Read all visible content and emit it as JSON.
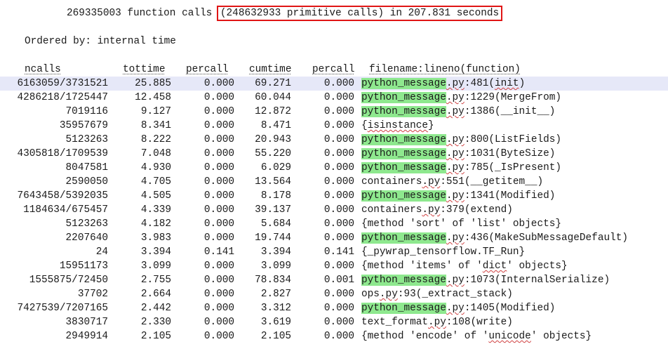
{
  "summary": {
    "calls_text": "269335003 function calls",
    "primitive_text": "(248632933 primitive calls) in 207.831 seconds"
  },
  "ordered_by": "Ordered by: internal time",
  "headers": {
    "ncalls": "ncalls",
    "tottime": "tottime",
    "percall1": "percall",
    "cumtime": "cumtime",
    "percall2": "percall",
    "fn": "filename:lineno(function)"
  },
  "rows": [
    {
      "ncalls": "6163059/3731521",
      "tottime": "25.885",
      "percall1": "0.000",
      "cumtime": "69.271",
      "percall2": "0.000",
      "file": "python_message",
      "ext": ".py",
      "rest": ":481(init)"
    },
    {
      "ncalls": "4286218/1725447",
      "tottime": "12.458",
      "percall1": "0.000",
      "cumtime": "60.044",
      "percall2": "0.000",
      "file": "python_message",
      "ext": ".py",
      "rest": ":1229(MergeFrom)"
    },
    {
      "ncalls": "7019116",
      "tottime": "9.127",
      "percall1": "0.000",
      "cumtime": "12.872",
      "percall2": "0.000",
      "file": "python_message",
      "ext": ".py",
      "rest": ":1386(__init__)"
    },
    {
      "ncalls": "35957679",
      "tottime": "8.341",
      "percall1": "0.000",
      "cumtime": "8.471",
      "percall2": "0.000",
      "file": "",
      "ext": "",
      "rest": "{isinstance}"
    },
    {
      "ncalls": "5123263",
      "tottime": "8.222",
      "percall1": "0.000",
      "cumtime": "20.943",
      "percall2": "0.000",
      "file": "python_message",
      "ext": ".py",
      "rest": ":800(ListFields)"
    },
    {
      "ncalls": "4305818/1709539",
      "tottime": "7.048",
      "percall1": "0.000",
      "cumtime": "55.220",
      "percall2": "0.000",
      "file": "python_message",
      "ext": ".py",
      "rest": ":1031(ByteSize)"
    },
    {
      "ncalls": "8047581",
      "tottime": "4.930",
      "percall1": "0.000",
      "cumtime": "6.029",
      "percall2": "0.000",
      "file": "python_message",
      "ext": ".py",
      "rest": ":785(_IsPresent)"
    },
    {
      "ncalls": "2590050",
      "tottime": "4.705",
      "percall1": "0.000",
      "cumtime": "13.564",
      "percall2": "0.000",
      "file": "containers",
      "ext": ".py",
      "rest": ":551(__getitem__)"
    },
    {
      "ncalls": "7643458/5392035",
      "tottime": "4.505",
      "percall1": "0.000",
      "cumtime": "8.178",
      "percall2": "0.000",
      "file": "python_message",
      "ext": ".py",
      "rest": ":1341(Modified)"
    },
    {
      "ncalls": "1184634/675457",
      "tottime": "4.339",
      "percall1": "0.000",
      "cumtime": "39.137",
      "percall2": "0.000",
      "file": "containers",
      "ext": ".py",
      "rest": ":379(extend)"
    },
    {
      "ncalls": "5123263",
      "tottime": "4.182",
      "percall1": "0.000",
      "cumtime": "5.684",
      "percall2": "0.000",
      "file": "",
      "ext": "",
      "rest": "{method 'sort' of 'list' objects}"
    },
    {
      "ncalls": "2207640",
      "tottime": "3.983",
      "percall1": "0.000",
      "cumtime": "19.744",
      "percall2": "0.000",
      "file": "python_message",
      "ext": ".py",
      "rest": ":436(MakeSubMessageDefault)"
    },
    {
      "ncalls": "24",
      "tottime": "3.394",
      "percall1": "0.141",
      "cumtime": "3.394",
      "percall2": "0.141",
      "file": "",
      "ext": "",
      "rest": "{_pywrap_tensorflow.TF_Run}"
    },
    {
      "ncalls": "15951173",
      "tottime": "3.099",
      "percall1": "0.000",
      "cumtime": "3.099",
      "percall2": "0.000",
      "file": "",
      "ext": "",
      "rest": "{method 'items' of 'dict' objects}"
    },
    {
      "ncalls": "1555875/72450",
      "tottime": "2.755",
      "percall1": "0.000",
      "cumtime": "78.834",
      "percall2": "0.001",
      "file": "python_message",
      "ext": ".py",
      "rest": ":1073(InternalSerialize)"
    },
    {
      "ncalls": "37702",
      "tottime": "2.664",
      "percall1": "0.000",
      "cumtime": "2.827",
      "percall2": "0.000",
      "file": "ops",
      "ext": ".py",
      "rest": ":93(_extract_stack)"
    },
    {
      "ncalls": "7427539/7207165",
      "tottime": "2.442",
      "percall1": "0.000",
      "cumtime": "3.312",
      "percall2": "0.000",
      "file": "python_message",
      "ext": ".py",
      "rest": ":1405(Modified)"
    },
    {
      "ncalls": "3830717",
      "tottime": "2.330",
      "percall1": "0.000",
      "cumtime": "3.619",
      "percall2": "0.000",
      "file": "text_format",
      "ext": ".py",
      "rest": ":108(write)"
    },
    {
      "ncalls": "2949914",
      "tottime": "2.105",
      "percall1": "0.000",
      "cumtime": "2.105",
      "percall2": "0.000",
      "file": "",
      "ext": "",
      "rest": "{method 'encode' of 'unicode' objects}"
    }
  ]
}
